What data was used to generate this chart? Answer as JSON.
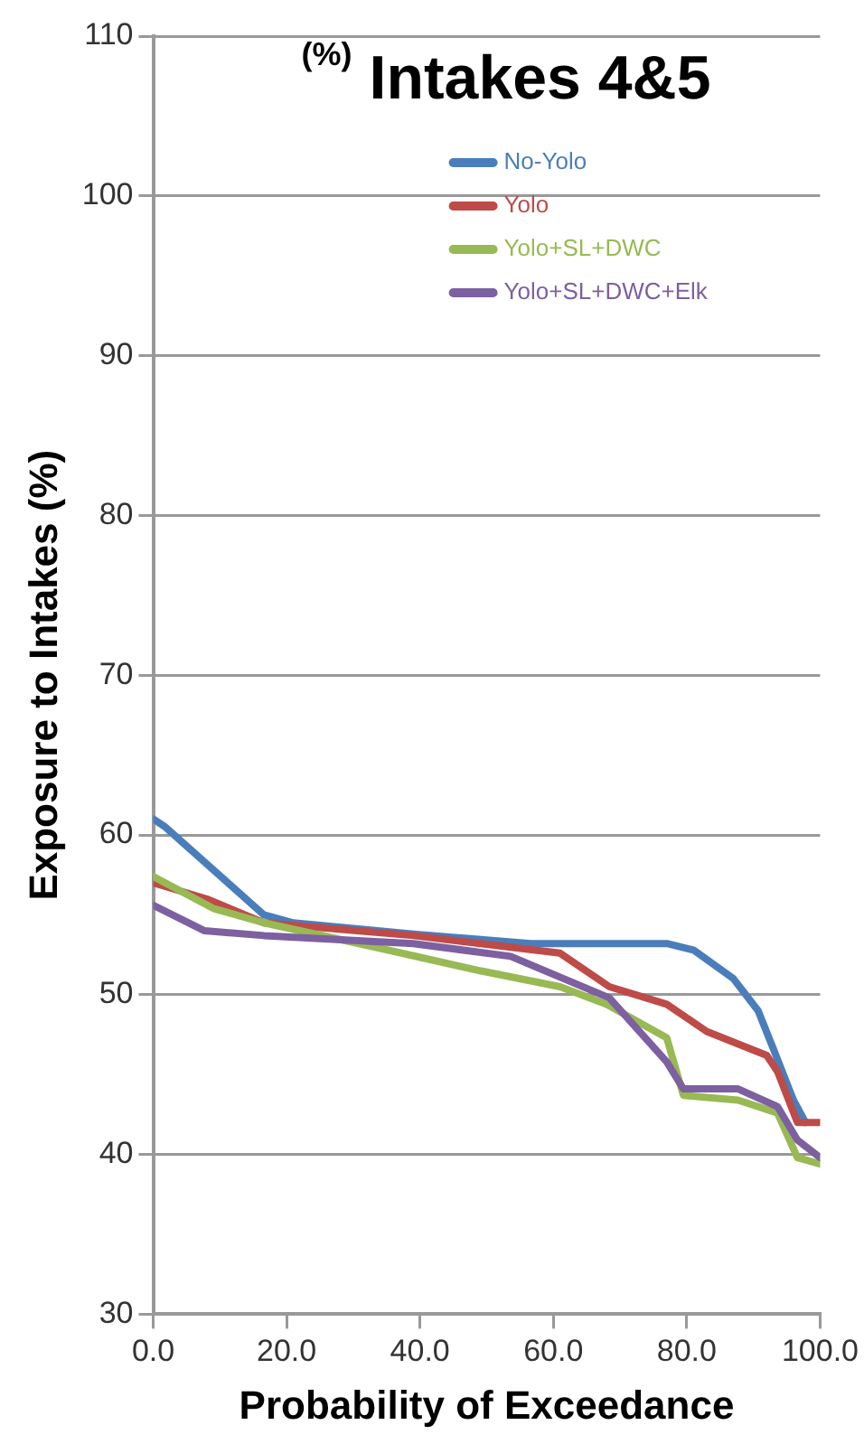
{
  "chart_data": {
    "type": "line",
    "title": "Intakes 4&5",
    "annotations": [
      "(%)"
    ],
    "xlabel": "Probability of Exceedance",
    "ylabel": "Exposure to Intakes (%)",
    "xlim": [
      0,
      100
    ],
    "xticks": [
      {
        "value": 0,
        "label": "0.0"
      },
      {
        "value": 20,
        "label": "20.0"
      },
      {
        "value": 40,
        "label": "40.0"
      },
      {
        "value": 60,
        "label": "60.0"
      },
      {
        "value": 80,
        "label": "80.0"
      },
      {
        "value": 100,
        "label": "100.0"
      }
    ],
    "ylim": [
      30,
      110
    ],
    "yticks": [
      30,
      40,
      50,
      60,
      70,
      80,
      90,
      100,
      110
    ],
    "grid": "y",
    "legend": "top",
    "marker": "none",
    "line_style": "solid",
    "series": [
      {
        "name": "No-Yolo",
        "color": "#4a7ebb",
        "x": [
          0,
          1.8,
          16.6,
          21,
          39,
          56.6,
          77,
          81,
          87,
          90.7,
          93,
          96,
          97.8
        ],
        "values": [
          61,
          60.5,
          55,
          54.5,
          53.8,
          53.2,
          53.2,
          52.8,
          51,
          49,
          46.6,
          43.4,
          42
        ]
      },
      {
        "name": "Yolo",
        "color": "#be4b48",
        "x": [
          0,
          8,
          16.6,
          39,
          61,
          68.4,
          77,
          83,
          92,
          93.6,
          96.6,
          100
        ],
        "values": [
          57,
          56,
          54.5,
          53.7,
          52.6,
          50.5,
          49.4,
          47.7,
          46.2,
          45.2,
          42,
          42
        ]
      },
      {
        "name": "Yolo+SL+DWC",
        "color": "#98b954",
        "x": [
          0,
          9,
          16.6,
          33,
          49,
          61,
          68,
          77,
          79.5,
          87.7,
          93.6,
          96.6,
          100
        ],
        "values": [
          57.4,
          55.4,
          54.5,
          53,
          51.5,
          50.5,
          49.4,
          47.3,
          43.7,
          43.4,
          42.6,
          39.8,
          39.4
        ]
      },
      {
        "name": "Yolo+SL+DWC+Elk",
        "color": "#7d60a0",
        "x": [
          0,
          7.7,
          16.6,
          39,
          53.6,
          61,
          68.4,
          77,
          79.5,
          87.7,
          93.6,
          96.6,
          100
        ],
        "values": [
          55.6,
          54,
          53.7,
          53.2,
          52.4,
          51.1,
          49.8,
          45.8,
          44.1,
          44.1,
          43,
          40.9,
          39.8
        ]
      }
    ]
  }
}
